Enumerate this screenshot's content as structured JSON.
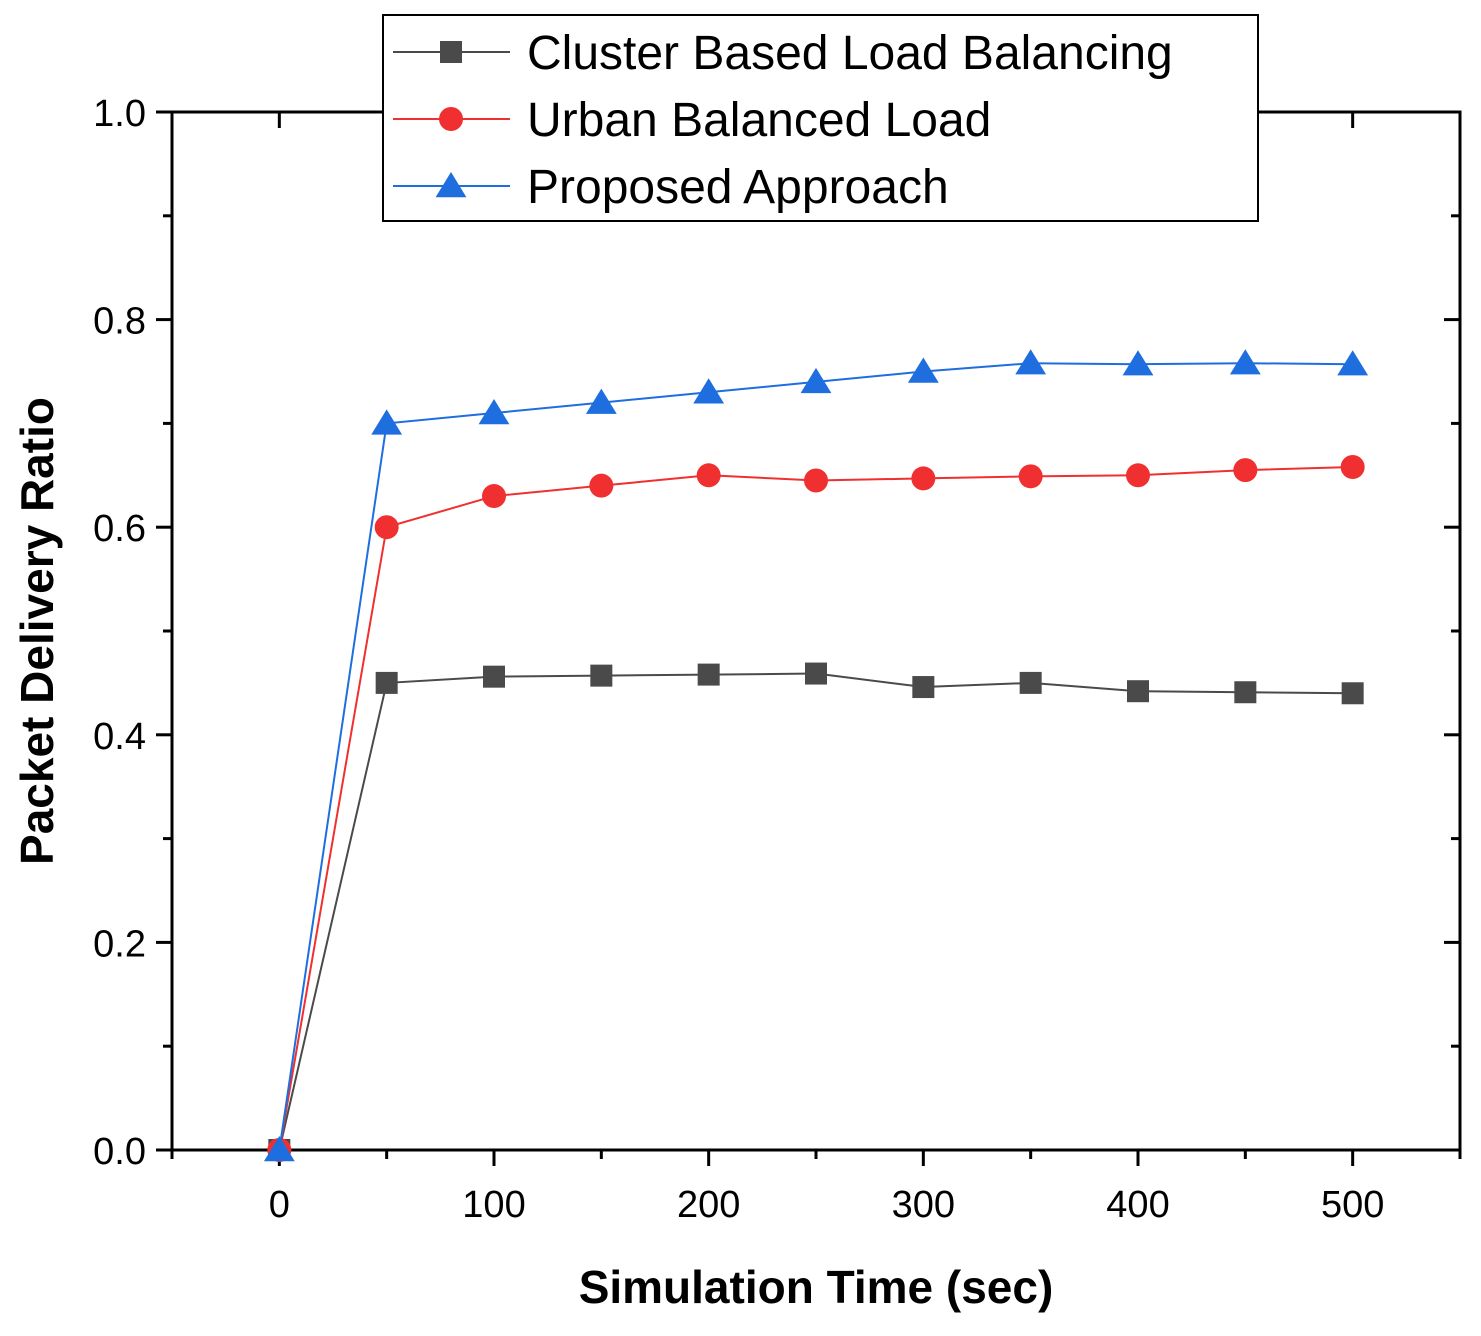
{
  "chart_data": {
    "type": "line",
    "title": "",
    "xlabel": "Simulation Time (sec)",
    "ylabel": "Packet Delivery Ratio",
    "xlim": [
      -50,
      550
    ],
    "ylim": [
      0.0,
      1.0
    ],
    "x_ticks": [
      0,
      100,
      200,
      300,
      400,
      500
    ],
    "x_tick_labels": [
      "0",
      "100",
      "200",
      "300",
      "400",
      "500"
    ],
    "y_ticks": [
      0.0,
      0.2,
      0.4,
      0.6,
      0.8,
      1.0
    ],
    "y_tick_labels": [
      "0.0",
      "0.2",
      "0.4",
      "0.6",
      "0.8",
      "1.0"
    ],
    "grid": false,
    "legend_position": "top-center",
    "x": [
      0,
      50,
      100,
      150,
      200,
      250,
      300,
      350,
      400,
      450,
      500
    ],
    "series": [
      {
        "name": "Cluster Based Load Balancing",
        "color": "#4a4a4a",
        "marker": "square",
        "values": [
          0.0,
          0.45,
          0.456,
          0.457,
          0.458,
          0.459,
          0.446,
          0.45,
          0.442,
          0.441,
          0.44
        ]
      },
      {
        "name": "Urban Balanced Load",
        "color": "#f03030",
        "marker": "circle",
        "values": [
          0.0,
          0.6,
          0.63,
          0.64,
          0.65,
          0.645,
          0.647,
          0.649,
          0.65,
          0.655,
          0.658
        ]
      },
      {
        "name": "Proposed Approach",
        "color": "#1e6ee0",
        "marker": "triangle",
        "values": [
          0.0,
          0.7,
          0.71,
          0.72,
          0.73,
          0.74,
          0.75,
          0.758,
          0.757,
          0.758,
          0.757
        ]
      }
    ]
  }
}
